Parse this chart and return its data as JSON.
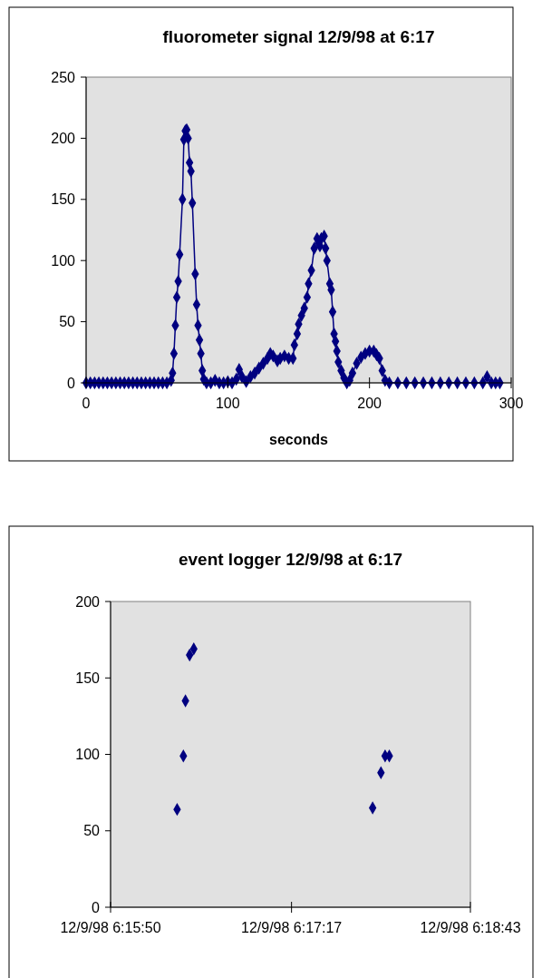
{
  "chart_data": [
    {
      "type": "line",
      "title": "fluorometer signal 12/9/98 at 6:17",
      "xlabel": "seconds",
      "marker": "diamond",
      "line_style": "solid",
      "grid": false,
      "xlim": [
        0,
        300
      ],
      "xticks": [
        0,
        100,
        200,
        300
      ],
      "ylim": [
        0,
        250
      ],
      "yticks": [
        0,
        50,
        100,
        150,
        200,
        250
      ],
      "series": [
        {
          "color": "#000080",
          "x": [
            0,
            3,
            6,
            9,
            12,
            15,
            18,
            21,
            24,
            27,
            30,
            33,
            36,
            39,
            42,
            45,
            48,
            51,
            54,
            57,
            60,
            61,
            62,
            63,
            64,
            65,
            66,
            68,
            69,
            70,
            71,
            72,
            73,
            74,
            75,
            77,
            78,
            79,
            80,
            81,
            82,
            83,
            85,
            88,
            91,
            94,
            97,
            100,
            103,
            106,
            108,
            110,
            113,
            116,
            119,
            122,
            125,
            128,
            130,
            132,
            135,
            137,
            140,
            143,
            146,
            147,
            149,
            150,
            152,
            154,
            156,
            157,
            159,
            161,
            163,
            164,
            165,
            166,
            168,
            169,
            170,
            172,
            173,
            174,
            175,
            176,
            177,
            178,
            180,
            182,
            184,
            186,
            188,
            191,
            194,
            197,
            200,
            203,
            205,
            207,
            209,
            211,
            214,
            220,
            226,
            232,
            238,
            244,
            250,
            256,
            262,
            268,
            274,
            280,
            283,
            286,
            289,
            292
          ],
          "values": [
            0,
            0,
            0,
            0,
            0,
            0,
            0,
            0,
            0,
            0,
            0,
            0,
            0,
            0,
            0,
            0,
            0,
            0,
            0,
            0,
            2,
            8,
            24,
            47,
            70,
            83,
            105,
            150,
            199,
            206,
            207,
            200,
            180,
            173,
            147,
            89,
            64,
            47,
            35,
            24,
            10,
            3,
            0,
            0,
            2,
            0,
            0,
            1,
            0,
            3,
            11,
            5,
            1,
            5,
            8,
            12,
            16,
            20,
            24,
            22,
            18,
            20,
            22,
            20,
            20,
            31,
            40,
            48,
            55,
            61,
            70,
            81,
            92,
            110,
            118,
            115,
            112,
            118,
            120,
            110,
            100,
            81,
            76,
            58,
            40,
            34,
            26,
            17,
            10,
            4,
            0,
            2,
            8,
            16,
            21,
            24,
            26,
            26,
            23,
            20,
            10,
            2,
            0,
            0,
            0,
            0,
            0,
            0,
            0,
            0,
            0,
            0,
            0,
            0,
            5,
            0,
            0,
            0
          ]
        }
      ]
    },
    {
      "type": "scatter",
      "title": "event logger 12/9/98 at 6:17",
      "marker": "diamond",
      "grid": false,
      "xlim": [
        "1998-12-09T06:15:50",
        "1998-12-09T06:18:43"
      ],
      "xticks": [
        {
          "value": "1998-12-09T06:15:50",
          "label": "12/9/98 6:15:50"
        },
        {
          "value": "1998-12-09T06:17:17",
          "label": "12/9/98 6:17:17"
        },
        {
          "value": "1998-12-09T06:18:43",
          "label": "12/9/98 6:18:43"
        }
      ],
      "ylim": [
        0,
        200
      ],
      "yticks": [
        0,
        50,
        100,
        150,
        200
      ],
      "series": [
        {
          "color": "#000080",
          "x": [
            "1998-12-09T06:16:22",
            "1998-12-09T06:16:25",
            "1998-12-09T06:16:26",
            "1998-12-09T06:16:28",
            "1998-12-09T06:16:30",
            "1998-12-09T06:17:56",
            "1998-12-09T06:18:00",
            "1998-12-09T06:18:02",
            "1998-12-09T06:18:04"
          ],
          "values": [
            64,
            99,
            135,
            165,
            169,
            65,
            88,
            99,
            99
          ]
        }
      ]
    }
  ]
}
